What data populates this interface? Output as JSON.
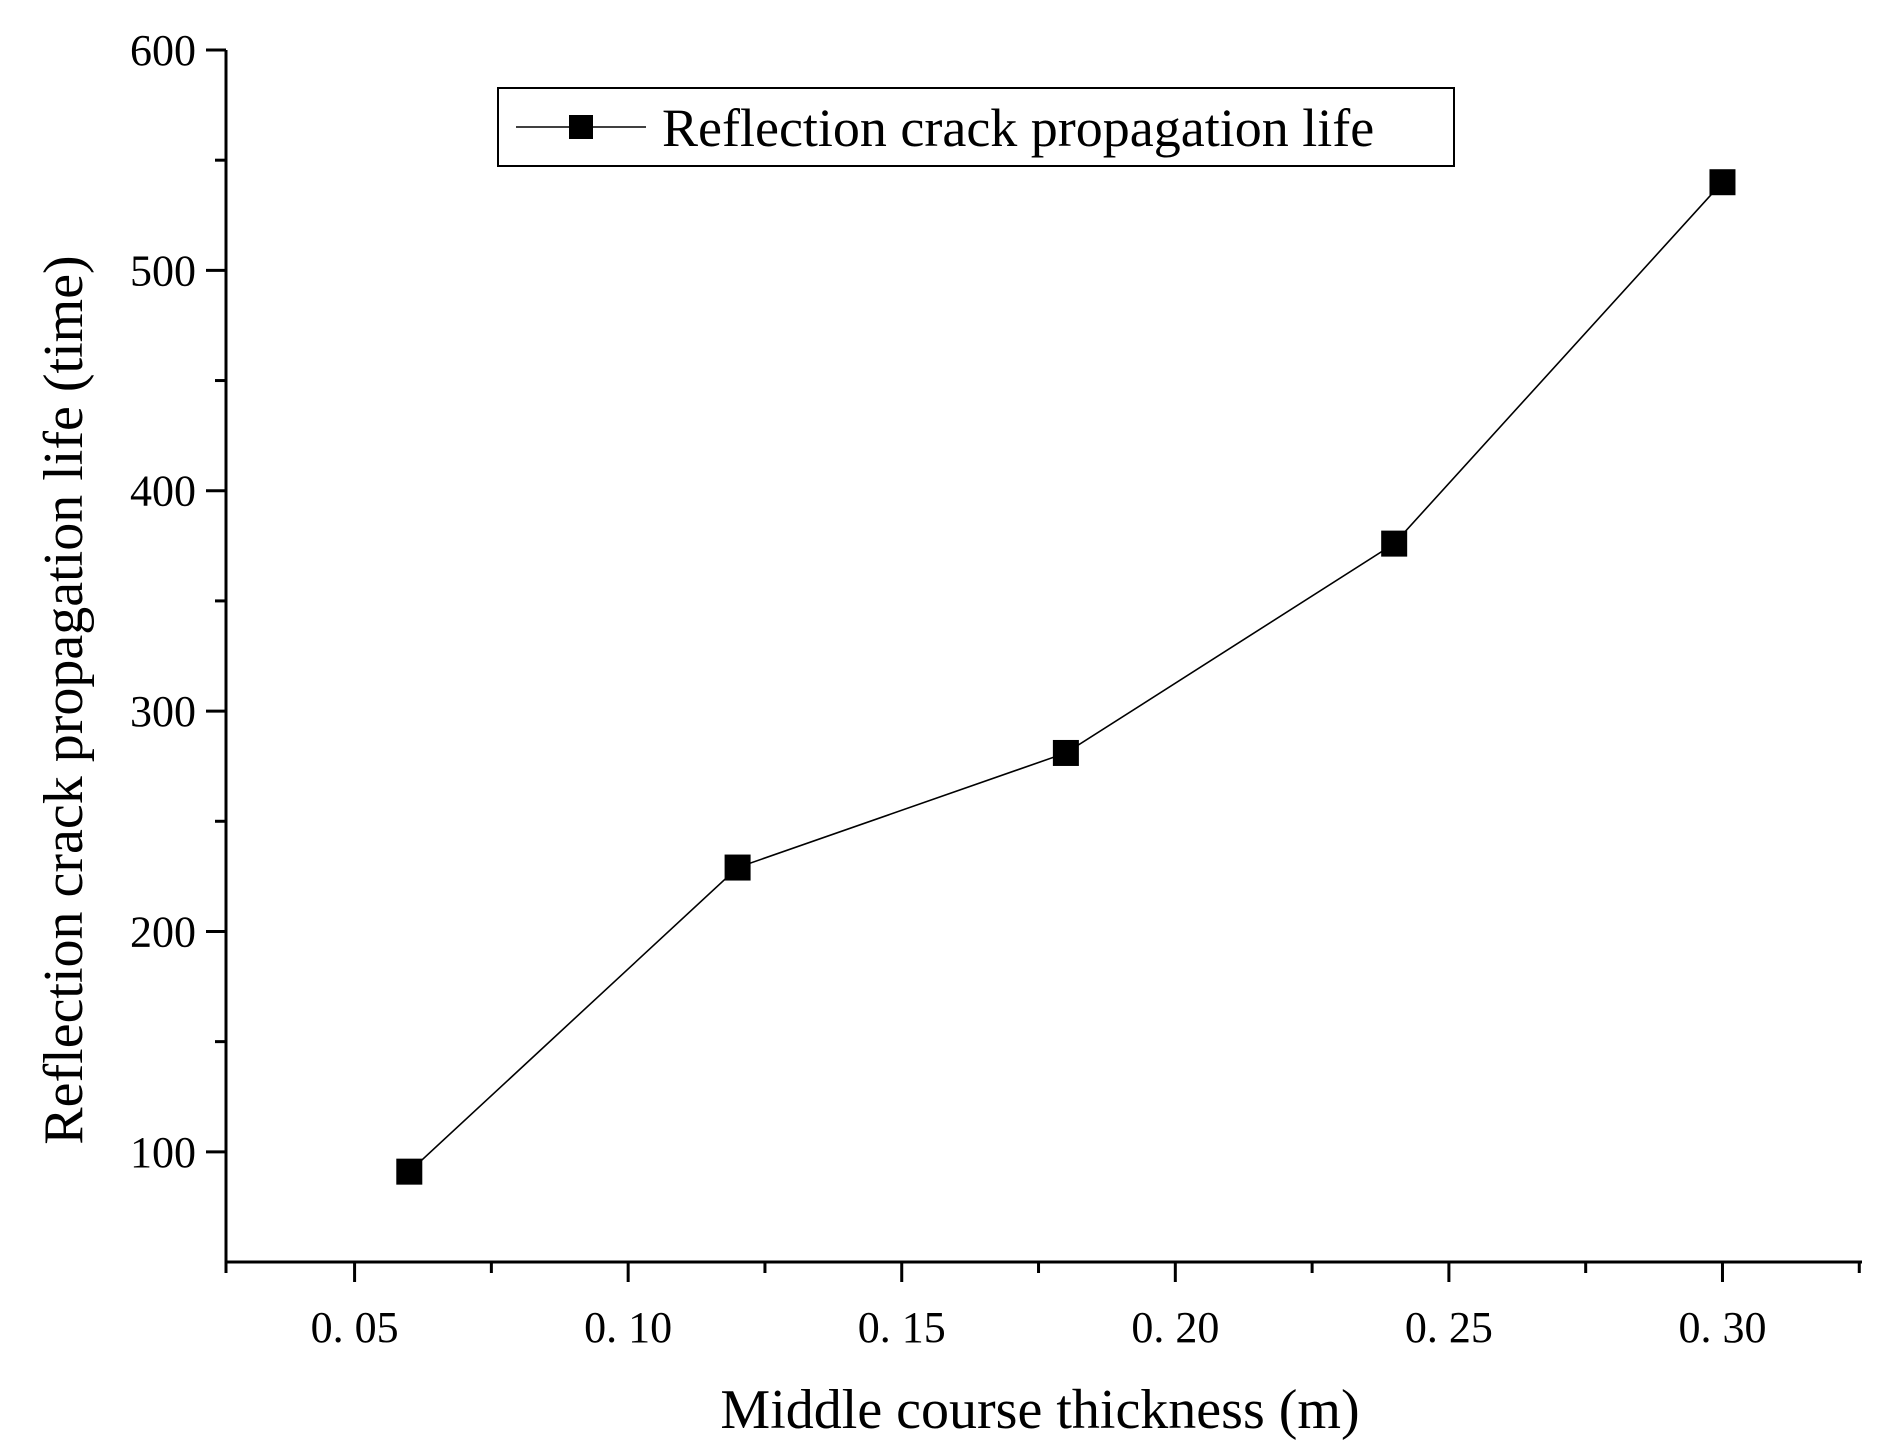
{
  "chart_data": {
    "type": "line",
    "title": "",
    "xlabel": "Middle course thickness (m)",
    "ylabel": "Reflection crack propagation life (time)",
    "xlim": [
      0.0265,
      0.3255
    ],
    "ylim": [
      50,
      600
    ],
    "x_ticks": [
      0.05,
      0.1,
      0.15,
      0.2,
      0.25,
      0.3
    ],
    "x_tick_labels": [
      "0. 05",
      "0. 10",
      "0. 15",
      "0. 20",
      "0. 25",
      "0. 30"
    ],
    "x_minor_ticks": [
      0.075,
      0.125,
      0.175,
      0.225,
      0.275,
      0.325
    ],
    "y_ticks": [
      100,
      200,
      300,
      400,
      500,
      600
    ],
    "y_tick_labels": [
      "100",
      "200",
      "300",
      "400",
      "500",
      "600"
    ],
    "y_minor_ticks": [
      150,
      250,
      350,
      450,
      550
    ],
    "grid": false,
    "legend_position": "top-center",
    "series": [
      {
        "name": "Reflection crack propagation life",
        "marker": "square",
        "color": "#000000",
        "x": [
          0.06,
          0.12,
          0.18,
          0.24,
          0.3
        ],
        "values": [
          91,
          229,
          281,
          376,
          540
        ]
      }
    ]
  }
}
